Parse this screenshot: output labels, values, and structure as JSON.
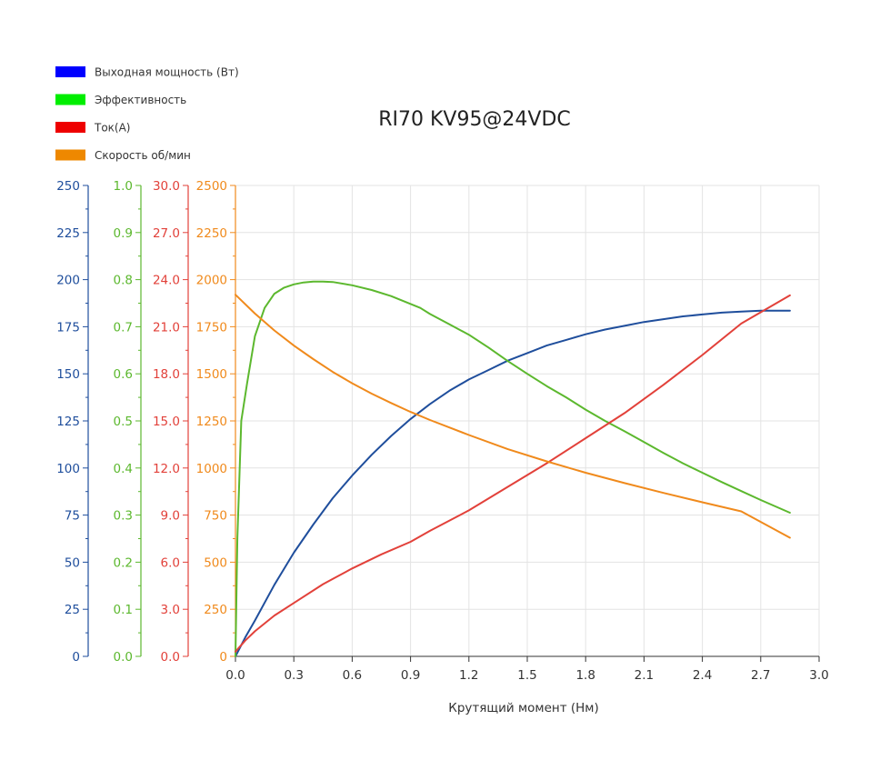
{
  "chart_data": {
    "type": "line",
    "title": "RI70 KV95@24VDC",
    "xlabel": "Крутящий момент (Нм)",
    "x_ticks": [
      "0.0",
      "0.3",
      "0.6",
      "0.9",
      "1.2",
      "1.5",
      "1.8",
      "2.1",
      "2.4",
      "2.7",
      "3.0"
    ],
    "xlim": [
      0,
      3.0
    ],
    "grid": true,
    "legend_position": "top-left",
    "series": [
      {
        "name": "Выходная мощность (Вт)",
        "legend_color": "#0000ff",
        "line_color": "#1f4e9c",
        "axis_color": "#1f4e9c",
        "ylim": [
          0,
          250
        ],
        "y_ticks": [
          "0",
          "25",
          "50",
          "75",
          "100",
          "125",
          "150",
          "175",
          "200",
          "225",
          "250"
        ],
        "points": [
          [
            0,
            0
          ],
          [
            0.05,
            10
          ],
          [
            0.1,
            19
          ],
          [
            0.2,
            38
          ],
          [
            0.3,
            55
          ],
          [
            0.4,
            70
          ],
          [
            0.5,
            84
          ],
          [
            0.6,
            96
          ],
          [
            0.7,
            107
          ],
          [
            0.8,
            117
          ],
          [
            0.9,
            126
          ],
          [
            1.0,
            134
          ],
          [
            1.1,
            141
          ],
          [
            1.2,
            147
          ],
          [
            1.3,
            152
          ],
          [
            1.4,
            157
          ],
          [
            1.5,
            161
          ],
          [
            1.6,
            165
          ],
          [
            1.7,
            168
          ],
          [
            1.8,
            171
          ],
          [
            1.9,
            173.5
          ],
          [
            2.0,
            175.5
          ],
          [
            2.1,
            177.5
          ],
          [
            2.2,
            179
          ],
          [
            2.3,
            180.5
          ],
          [
            2.4,
            181.5
          ],
          [
            2.5,
            182.5
          ],
          [
            2.6,
            183
          ],
          [
            2.7,
            183.5
          ],
          [
            2.85,
            183.5
          ]
        ]
      },
      {
        "name": "Эффективность",
        "legend_color": "#00ee00",
        "line_color": "#5cb82e",
        "axis_color": "#5cb82e",
        "ylim": [
          0,
          1.0
        ],
        "y_ticks": [
          "0.0",
          "0.1",
          "0.2",
          "0.3",
          "0.4",
          "0.5",
          "0.6",
          "0.7",
          "0.8",
          "0.9",
          "1.0"
        ],
        "points": [
          [
            0,
            0
          ],
          [
            0.01,
            0.25
          ],
          [
            0.03,
            0.5
          ],
          [
            0.06,
            0.58
          ],
          [
            0.1,
            0.68
          ],
          [
            0.15,
            0.74
          ],
          [
            0.2,
            0.77
          ],
          [
            0.25,
            0.783
          ],
          [
            0.3,
            0.79
          ],
          [
            0.35,
            0.794
          ],
          [
            0.4,
            0.796
          ],
          [
            0.45,
            0.796
          ],
          [
            0.5,
            0.795
          ],
          [
            0.6,
            0.788
          ],
          [
            0.7,
            0.778
          ],
          [
            0.8,
            0.765
          ],
          [
            0.95,
            0.74
          ],
          [
            1.0,
            0.727
          ],
          [
            1.1,
            0.705
          ],
          [
            1.2,
            0.683
          ],
          [
            1.3,
            0.656
          ],
          [
            1.4,
            0.627
          ],
          [
            1.5,
            0.6
          ],
          [
            1.6,
            0.574
          ],
          [
            1.7,
            0.55
          ],
          [
            1.8,
            0.524
          ],
          [
            1.9,
            0.5
          ],
          [
            2.0,
            0.478
          ],
          [
            2.1,
            0.455
          ],
          [
            2.2,
            0.432
          ],
          [
            2.3,
            0.41
          ],
          [
            2.4,
            0.39
          ],
          [
            2.5,
            0.37
          ],
          [
            2.6,
            0.351
          ],
          [
            2.7,
            0.332
          ],
          [
            2.85,
            0.305
          ]
        ]
      },
      {
        "name": "Ток(А)",
        "legend_color": "#ee0000",
        "line_color": "#e2413a",
        "axis_color": "#e2413a",
        "ylim": [
          0,
          30
        ],
        "y_ticks": [
          "0.0",
          "3.0",
          "6.0",
          "9.0",
          "12.0",
          "15.0",
          "18.0",
          "21.0",
          "24.0",
          "27.0",
          "30.0"
        ],
        "points": [
          [
            0,
            0.3
          ],
          [
            0.05,
            1.0
          ],
          [
            0.1,
            1.6
          ],
          [
            0.2,
            2.6
          ],
          [
            0.3,
            3.4
          ],
          [
            0.45,
            4.6
          ],
          [
            0.6,
            5.6
          ],
          [
            0.75,
            6.5
          ],
          [
            0.9,
            7.3
          ],
          [
            1.0,
            8.0
          ],
          [
            1.2,
            9.3
          ],
          [
            1.4,
            10.8
          ],
          [
            1.6,
            12.3
          ],
          [
            1.8,
            13.9
          ],
          [
            2.0,
            15.5
          ],
          [
            2.2,
            17.3
          ],
          [
            2.4,
            19.2
          ],
          [
            2.6,
            21.2
          ],
          [
            2.85,
            23.0
          ]
        ]
      },
      {
        "name": "Скорость об/мин",
        "legend_color": "#ee8800",
        "line_color": "#f08a1c",
        "axis_color": "#f08a1c",
        "ylim": [
          0,
          2500
        ],
        "y_ticks": [
          "0",
          "250",
          "500",
          "750",
          "1000",
          "1250",
          "1500",
          "1750",
          "2000",
          "2250",
          "2500"
        ],
        "points": [
          [
            0,
            1920
          ],
          [
            0.1,
            1820
          ],
          [
            0.2,
            1730
          ],
          [
            0.3,
            1650
          ],
          [
            0.4,
            1578
          ],
          [
            0.5,
            1510
          ],
          [
            0.6,
            1450
          ],
          [
            0.7,
            1395
          ],
          [
            0.8,
            1345
          ],
          [
            0.9,
            1298
          ],
          [
            1.0,
            1255
          ],
          [
            1.2,
            1175
          ],
          [
            1.4,
            1100
          ],
          [
            1.6,
            1035
          ],
          [
            1.8,
            975
          ],
          [
            2.0,
            920
          ],
          [
            2.2,
            868
          ],
          [
            2.4,
            818
          ],
          [
            2.6,
            770
          ],
          [
            2.85,
            630
          ]
        ]
      }
    ]
  }
}
